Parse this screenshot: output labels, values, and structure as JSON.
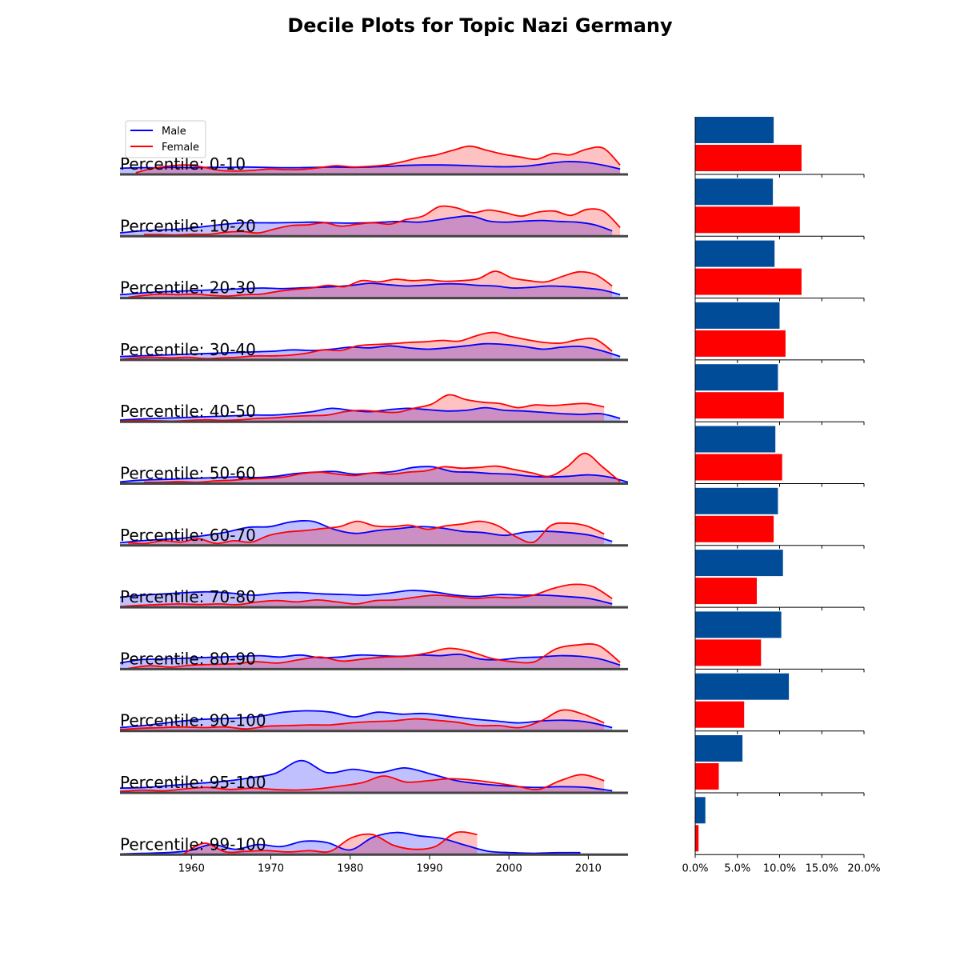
{
  "chart_data": {
    "title": "Decile Plots for Topic Nazi Germany",
    "type": "ridgeline-with-bar",
    "legend": {
      "position": "top-left",
      "entries": [
        "Male",
        "Female"
      ]
    },
    "colors": {
      "male_line": "#0000ff",
      "male_fill": "#bdbdff",
      "female_line": "#ff0000",
      "female_fill": "#ffbfbf",
      "overlap_fill": "#cc8fc4",
      "male_bar": "#004c99",
      "female_bar": "#ff0000"
    },
    "ridge_x_axis": {
      "ticks": [
        1960,
        1970,
        1980,
        1990,
        2000,
        2010
      ],
      "xlim": [
        1951,
        2015
      ]
    },
    "bar_x_axis": {
      "ticks": [
        "0.0%",
        "5.0%",
        "10.0%",
        "15.0%",
        "20.0%"
      ],
      "xlim": [
        0,
        20
      ]
    },
    "rows": [
      {
        "label": "Percentile: 0-10",
        "male_pct": 9.3,
        "female_pct": 12.6,
        "male": {
          "start": 1951,
          "end": 2014,
          "y": [
            0.18,
            0.2,
            0.2,
            0.21,
            0.2,
            0.21,
            0.21,
            0.22,
            0.21,
            0.2,
            0.2,
            0.21,
            0.22,
            0.21,
            0.22,
            0.24,
            0.27,
            0.28,
            0.28,
            0.27,
            0.25,
            0.23,
            0.23,
            0.26,
            0.33,
            0.38,
            0.36,
            0.28,
            0.16
          ]
        },
        "female": {
          "start": 1953,
          "end": 2014,
          "y": [
            0.05,
            0.18,
            0.25,
            0.28,
            0.22,
            0.12,
            0.1,
            0.12,
            0.16,
            0.14,
            0.15,
            0.2,
            0.26,
            0.22,
            0.24,
            0.28,
            0.38,
            0.5,
            0.58,
            0.72,
            0.84,
            0.72,
            0.6,
            0.52,
            0.45,
            0.62,
            0.58,
            0.75,
            0.78,
            0.28
          ]
        }
      },
      {
        "label": "Percentile: 10-20",
        "male_pct": 9.2,
        "female_pct": 12.4,
        "male": {
          "start": 1951,
          "end": 2013,
          "y": [
            0.1,
            0.15,
            0.18,
            0.2,
            0.24,
            0.3,
            0.36,
            0.4,
            0.4,
            0.4,
            0.41,
            0.42,
            0.4,
            0.39,
            0.4,
            0.42,
            0.44,
            0.42,
            0.48,
            0.56,
            0.6,
            0.45,
            0.42,
            0.45,
            0.47,
            0.44,
            0.42,
            0.34,
            0.16
          ]
        },
        "female": {
          "start": 1954,
          "end": 2014,
          "y": [
            0.05,
            0.05,
            0.04,
            0.06,
            0.06,
            0.12,
            0.14,
            0.1,
            0.22,
            0.32,
            0.34,
            0.4,
            0.3,
            0.36,
            0.4,
            0.36,
            0.5,
            0.6,
            0.88,
            0.85,
            0.7,
            0.78,
            0.7,
            0.6,
            0.72,
            0.75,
            0.62,
            0.8,
            0.74,
            0.26
          ]
        }
      },
      {
        "label": "Percentile: 20-30",
        "male_pct": 9.4,
        "female_pct": 12.6,
        "male": {
          "start": 1951,
          "end": 2014,
          "y": [
            0.1,
            0.14,
            0.18,
            0.2,
            0.22,
            0.24,
            0.26,
            0.28,
            0.3,
            0.28,
            0.3,
            0.32,
            0.34,
            0.38,
            0.44,
            0.4,
            0.36,
            0.38,
            0.42,
            0.42,
            0.38,
            0.36,
            0.3,
            0.32,
            0.36,
            0.34,
            0.3,
            0.24,
            0.1
          ]
        },
        "female": {
          "start": 1952,
          "end": 2013,
          "y": [
            0.02,
            0.08,
            0.12,
            0.1,
            0.12,
            0.08,
            0.06,
            0.1,
            0.12,
            0.2,
            0.26,
            0.3,
            0.38,
            0.34,
            0.52,
            0.48,
            0.56,
            0.52,
            0.54,
            0.5,
            0.52,
            0.58,
            0.8,
            0.6,
            0.52,
            0.48,
            0.64,
            0.78,
            0.7,
            0.36
          ]
        }
      },
      {
        "label": "Percentile: 30-40",
        "male_pct": 10.0,
        "female_pct": 10.7,
        "male": {
          "start": 1951,
          "end": 2014,
          "y": [
            0.1,
            0.12,
            0.14,
            0.16,
            0.18,
            0.2,
            0.22,
            0.24,
            0.26,
            0.3,
            0.28,
            0.32,
            0.38,
            0.36,
            0.42,
            0.36,
            0.32,
            0.36,
            0.42,
            0.48,
            0.46,
            0.4,
            0.32,
            0.38,
            0.4,
            0.28,
            0.1
          ]
        },
        "female": {
          "start": 1951,
          "end": 2013,
          "y": [
            0.02,
            0.06,
            0.08,
            0.06,
            0.08,
            0.04,
            0.06,
            0.08,
            0.12,
            0.12,
            0.14,
            0.2,
            0.3,
            0.28,
            0.42,
            0.46,
            0.48,
            0.52,
            0.54,
            0.58,
            0.56,
            0.72,
            0.82,
            0.7,
            0.6,
            0.52,
            0.5,
            0.6,
            0.62,
            0.26
          ]
        }
      },
      {
        "label": "Percentile: 40-50",
        "male_pct": 9.8,
        "female_pct": 10.5,
        "male": {
          "start": 1951,
          "end": 2014,
          "y": [
            0.05,
            0.08,
            0.1,
            0.12,
            0.14,
            0.16,
            0.18,
            0.2,
            0.2,
            0.24,
            0.3,
            0.4,
            0.34,
            0.3,
            0.36,
            0.4,
            0.36,
            0.32,
            0.34,
            0.42,
            0.34,
            0.32,
            0.28,
            0.24,
            0.22,
            0.24,
            0.1
          ]
        },
        "female": {
          "start": 1951,
          "end": 2012,
          "y": [
            0.02,
            0.04,
            0.03,
            0.02,
            0.04,
            0.06,
            0.04,
            0.06,
            0.1,
            0.12,
            0.16,
            0.18,
            0.2,
            0.3,
            0.34,
            0.3,
            0.28,
            0.4,
            0.52,
            0.8,
            0.66,
            0.58,
            0.54,
            0.42,
            0.5,
            0.48,
            0.52,
            0.54,
            0.44
          ]
        }
      },
      {
        "label": "Percentile: 50-60",
        "male_pct": 9.5,
        "female_pct": 10.3,
        "male": {
          "start": 1951,
          "end": 2015,
          "y": [
            0.05,
            0.1,
            0.12,
            0.14,
            0.16,
            0.18,
            0.2,
            0.18,
            0.22,
            0.3,
            0.34,
            0.36,
            0.28,
            0.32,
            0.36,
            0.48,
            0.5,
            0.36,
            0.34,
            0.3,
            0.28,
            0.22,
            0.2,
            0.22,
            0.26,
            0.2,
            0.04
          ]
        },
        "female": {
          "start": 1954,
          "end": 2014,
          "y": [
            0.04,
            0.04,
            0.06,
            0.04,
            0.08,
            0.1,
            0.14,
            0.16,
            0.2,
            0.3,
            0.34,
            0.28,
            0.24,
            0.32,
            0.28,
            0.34,
            0.38,
            0.5,
            0.46,
            0.48,
            0.52,
            0.42,
            0.32,
            0.22,
            0.5,
            0.9,
            0.5,
            0.06
          ]
        }
      },
      {
        "label": "Percentile: 60-70",
        "male_pct": 9.8,
        "female_pct": 9.3,
        "male": {
          "start": 1951,
          "end": 2013,
          "y": [
            0.08,
            0.14,
            0.18,
            0.22,
            0.3,
            0.4,
            0.54,
            0.56,
            0.7,
            0.72,
            0.48,
            0.36,
            0.44,
            0.5,
            0.56,
            0.52,
            0.42,
            0.38,
            0.3,
            0.4,
            0.42,
            0.38,
            0.3,
            0.12
          ]
        },
        "female": {
          "start": 1952,
          "end": 2012,
          "y": [
            0.08,
            0.06,
            0.14,
            0.1,
            0.2,
            0.06,
            0.14,
            0.1,
            0.3,
            0.4,
            0.44,
            0.5,
            0.56,
            0.72,
            0.58,
            0.56,
            0.6,
            0.48,
            0.58,
            0.64,
            0.72,
            0.58,
            0.26,
            0.1,
            0.6,
            0.66,
            0.58,
            0.34
          ]
        }
      },
      {
        "label": "Percentile: 70-80",
        "male_pct": 10.4,
        "female_pct": 7.3,
        "male": {
          "start": 1951,
          "end": 2013,
          "y": [
            0.3,
            0.36,
            0.4,
            0.44,
            0.46,
            0.42,
            0.36,
            0.42,
            0.44,
            0.4,
            0.38,
            0.36,
            0.42,
            0.5,
            0.46,
            0.36,
            0.32,
            0.38,
            0.36,
            0.36,
            0.32,
            0.26,
            0.1
          ]
        },
        "female": {
          "start": 1951,
          "end": 2013,
          "y": [
            0.02,
            0.06,
            0.08,
            0.1,
            0.08,
            0.1,
            0.08,
            0.16,
            0.2,
            0.16,
            0.22,
            0.16,
            0.1,
            0.2,
            0.22,
            0.3,
            0.36,
            0.32,
            0.26,
            0.3,
            0.28,
            0.36,
            0.56,
            0.68,
            0.62,
            0.26
          ]
        }
      },
      {
        "label": "Percentile: 80-90",
        "male_pct": 10.2,
        "female_pct": 7.8,
        "male": {
          "start": 1951,
          "end": 2014,
          "y": [
            0.18,
            0.28,
            0.3,
            0.32,
            0.34,
            0.36,
            0.38,
            0.4,
            0.36,
            0.42,
            0.34,
            0.36,
            0.42,
            0.4,
            0.38,
            0.42,
            0.4,
            0.44,
            0.3,
            0.28,
            0.34,
            0.36,
            0.4,
            0.38,
            0.3,
            0.12
          ]
        },
        "female": {
          "start": 1952,
          "end": 2014,
          "y": [
            0.02,
            0.1,
            0.06,
            0.12,
            0.14,
            0.16,
            0.22,
            0.18,
            0.28,
            0.36,
            0.24,
            0.3,
            0.36,
            0.38,
            0.48,
            0.62,
            0.52,
            0.32,
            0.22,
            0.22,
            0.6,
            0.72,
            0.7,
            0.2
          ]
        }
      },
      {
        "label": "Percentile: 90-100",
        "male_pct": 11.1,
        "female_pct": 5.8,
        "male": {
          "start": 1951,
          "end": 2013,
          "y": [
            0.1,
            0.16,
            0.24,
            0.32,
            0.36,
            0.38,
            0.44,
            0.56,
            0.6,
            0.56,
            0.42,
            0.56,
            0.5,
            0.52,
            0.44,
            0.36,
            0.3,
            0.24,
            0.3,
            0.32,
            0.26,
            0.1
          ]
        },
        "female": {
          "start": 1951,
          "end": 2012,
          "y": [
            0.04,
            0.08,
            0.1,
            0.12,
            0.1,
            0.12,
            0.06,
            0.14,
            0.16,
            0.18,
            0.18,
            0.24,
            0.28,
            0.3,
            0.36,
            0.32,
            0.26,
            0.16,
            0.16,
            0.1,
            0.3,
            0.62,
            0.5,
            0.24
          ]
        }
      },
      {
        "label": "Percentile: 95-100",
        "male_pct": 5.6,
        "female_pct": 2.8,
        "male": {
          "start": 1951,
          "end": 2013,
          "y": [
            0.14,
            0.16,
            0.22,
            0.28,
            0.34,
            0.44,
            0.58,
            0.96,
            0.6,
            0.7,
            0.6,
            0.74,
            0.56,
            0.36,
            0.26,
            0.2,
            0.16,
            0.18,
            0.16,
            0.06
          ]
        },
        "female": {
          "start": 1951,
          "end": 2012,
          "y": [
            0.04,
            0.08,
            0.06,
            0.12,
            0.16,
            0.1,
            0.14,
            0.1,
            0.08,
            0.12,
            0.2,
            0.3,
            0.5,
            0.32,
            0.36,
            0.42,
            0.38,
            0.3,
            0.2,
            0.1,
            0.36,
            0.54,
            0.36
          ]
        }
      },
      {
        "label": "Percentile: 99-100",
        "male_pct": 1.2,
        "female_pct": 0.4,
        "male": {
          "start": 1951,
          "end": 2009,
          "y": [
            0.02,
            0.04,
            0.06,
            0.12,
            0.3,
            0.16,
            0.3,
            0.24,
            0.4,
            0.36,
            0.14,
            0.52,
            0.66,
            0.56,
            0.48,
            0.28,
            0.1,
            0.06,
            0.04,
            0.06,
            0.06
          ]
        },
        "female": {
          "start": 1959,
          "end": 1996,
          "y": [
            0.02,
            0.34,
            0.08,
            0.1,
            0.12,
            0.08,
            0.12,
            0.1,
            0.5,
            0.6,
            0.28,
            0.16,
            0.24,
            0.66,
            0.6
          ]
        }
      }
    ]
  }
}
